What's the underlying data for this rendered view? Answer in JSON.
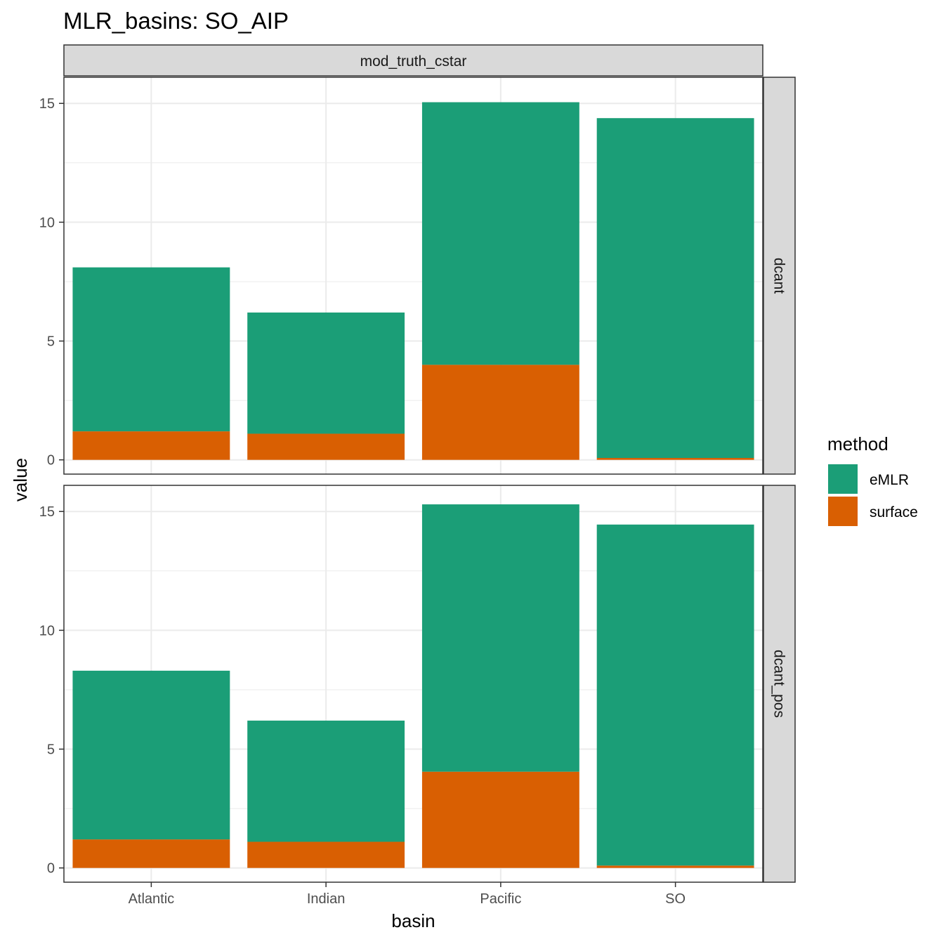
{
  "title": "MLR_basins: SO_AIP",
  "colors": {
    "eMLR": "#1B9E77",
    "surface": "#D95F02",
    "grid": "#EBEBEB",
    "strip": "#D9D9D9",
    "border": "#333333"
  },
  "chart_data": {
    "type": "bar",
    "stacked": true,
    "title": "MLR_basins: SO_AIP",
    "xlabel": "basin",
    "ylabel": "value",
    "ylim": [
      -0.6,
      16.1
    ],
    "yticks": [
      0,
      5,
      10,
      15
    ],
    "categories": [
      "Atlantic",
      "Indian",
      "Pacific",
      "SO"
    ],
    "facet_col": "mod_truth_cstar",
    "legend": {
      "title": "method",
      "position": "right",
      "entries": [
        "eMLR",
        "surface"
      ]
    },
    "grid": true,
    "panels": [
      {
        "facet_row": "dcant",
        "series": [
          {
            "name": "surface",
            "values": [
              1.2,
              1.1,
              4.0,
              0.08
            ]
          },
          {
            "name": "eMLR",
            "values": [
              6.9,
              5.1,
              11.05,
              14.3
            ]
          }
        ]
      },
      {
        "facet_row": "dcant_pos",
        "series": [
          {
            "name": "surface",
            "values": [
              1.2,
              1.1,
              4.05,
              0.1
            ]
          },
          {
            "name": "eMLR",
            "values": [
              7.1,
              5.1,
              11.25,
              14.35
            ]
          }
        ]
      }
    ]
  }
}
